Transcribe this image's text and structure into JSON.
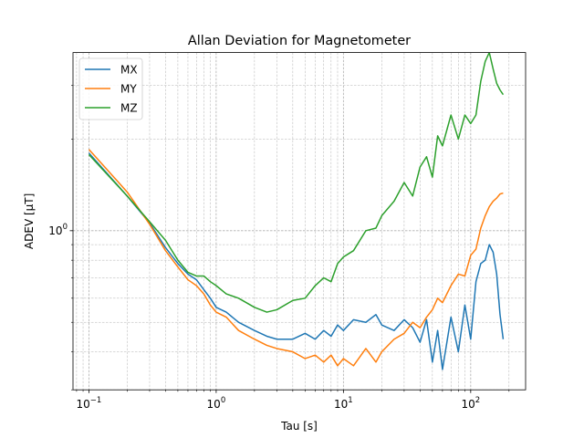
{
  "chart_data": {
    "type": "line",
    "title": "Allan Deviation for Magnetometer",
    "xlabel": "Tau [s]",
    "ylabel": "ADEV [μT]",
    "xscale": "log",
    "yscale": "log",
    "xlim": [
      0.075,
      270
    ],
    "ylim": [
      0.3,
      3.85
    ],
    "x_ticks": [
      {
        "value": 0.1,
        "base": "10",
        "exp": "−1"
      },
      {
        "value": 1,
        "base": "10",
        "exp": "0"
      },
      {
        "value": 10,
        "base": "10",
        "exp": "1"
      },
      {
        "value": 100,
        "base": "10",
        "exp": "2"
      }
    ],
    "y_ticks": [
      {
        "value": 1,
        "base": "10",
        "exp": "0"
      }
    ],
    "grid": true,
    "legend_position": "top-left",
    "series": [
      {
        "name": "MX",
        "color": "#1f77b4",
        "x": [
          0.1,
          0.2,
          0.3,
          0.4,
          0.5,
          0.6,
          0.7,
          0.8,
          0.9,
          1.0,
          1.2,
          1.5,
          2.0,
          2.5,
          3.0,
          4.0,
          5.0,
          6.0,
          7.0,
          8.0,
          9.0,
          10,
          12,
          15,
          18,
          20,
          25,
          30,
          35,
          40,
          45,
          50,
          55,
          60,
          70,
          80,
          90,
          100,
          110,
          120,
          130,
          140,
          150,
          160,
          170,
          180
        ],
        "y": [
          1.8,
          1.3,
          1.06,
          0.88,
          0.78,
          0.72,
          0.69,
          0.64,
          0.6,
          0.56,
          0.54,
          0.5,
          0.47,
          0.45,
          0.44,
          0.44,
          0.46,
          0.44,
          0.47,
          0.45,
          0.49,
          0.47,
          0.51,
          0.5,
          0.53,
          0.49,
          0.47,
          0.51,
          0.48,
          0.43,
          0.51,
          0.37,
          0.47,
          0.35,
          0.52,
          0.4,
          0.57,
          0.44,
          0.68,
          0.78,
          0.8,
          0.9,
          0.85,
          0.72,
          0.53,
          0.44
        ]
      },
      {
        "name": "MY",
        "color": "#ff7f0e",
        "x": [
          0.1,
          0.2,
          0.3,
          0.4,
          0.5,
          0.6,
          0.7,
          0.8,
          0.9,
          1.0,
          1.2,
          1.5,
          2.0,
          2.5,
          3.0,
          4.0,
          5.0,
          6.0,
          7.0,
          8.0,
          9.0,
          10,
          12,
          15,
          18,
          20,
          25,
          30,
          35,
          40,
          45,
          50,
          55,
          60,
          70,
          80,
          90,
          100,
          110,
          120,
          130,
          140,
          150,
          160,
          170,
          180
        ],
        "y": [
          1.85,
          1.34,
          1.05,
          0.86,
          0.76,
          0.69,
          0.66,
          0.62,
          0.57,
          0.54,
          0.52,
          0.47,
          0.44,
          0.42,
          0.41,
          0.4,
          0.38,
          0.39,
          0.37,
          0.39,
          0.36,
          0.38,
          0.36,
          0.41,
          0.37,
          0.4,
          0.44,
          0.46,
          0.5,
          0.48,
          0.52,
          0.55,
          0.6,
          0.58,
          0.66,
          0.72,
          0.71,
          0.83,
          0.87,
          1.02,
          1.12,
          1.2,
          1.25,
          1.28,
          1.32,
          1.33
        ]
      },
      {
        "name": "MZ",
        "color": "#2ca02c",
        "x": [
          0.1,
          0.2,
          0.3,
          0.4,
          0.5,
          0.6,
          0.7,
          0.8,
          0.9,
          1.0,
          1.2,
          1.5,
          2.0,
          2.5,
          3.0,
          4.0,
          5.0,
          6.0,
          7.0,
          8.0,
          9.0,
          10,
          12,
          15,
          18,
          20,
          25,
          30,
          35,
          40,
          45,
          50,
          55,
          60,
          70,
          80,
          90,
          100,
          110,
          120,
          130,
          140,
          150,
          160,
          170,
          180
        ],
        "y": [
          1.78,
          1.3,
          1.07,
          0.93,
          0.8,
          0.73,
          0.71,
          0.71,
          0.68,
          0.66,
          0.62,
          0.6,
          0.56,
          0.54,
          0.55,
          0.59,
          0.6,
          0.66,
          0.7,
          0.68,
          0.78,
          0.82,
          0.86,
          1.0,
          1.02,
          1.12,
          1.25,
          1.44,
          1.3,
          1.62,
          1.75,
          1.5,
          2.05,
          1.9,
          2.4,
          2.0,
          2.4,
          2.25,
          2.4,
          3.1,
          3.6,
          3.85,
          3.4,
          3.05,
          2.9,
          2.8
        ]
      }
    ]
  }
}
